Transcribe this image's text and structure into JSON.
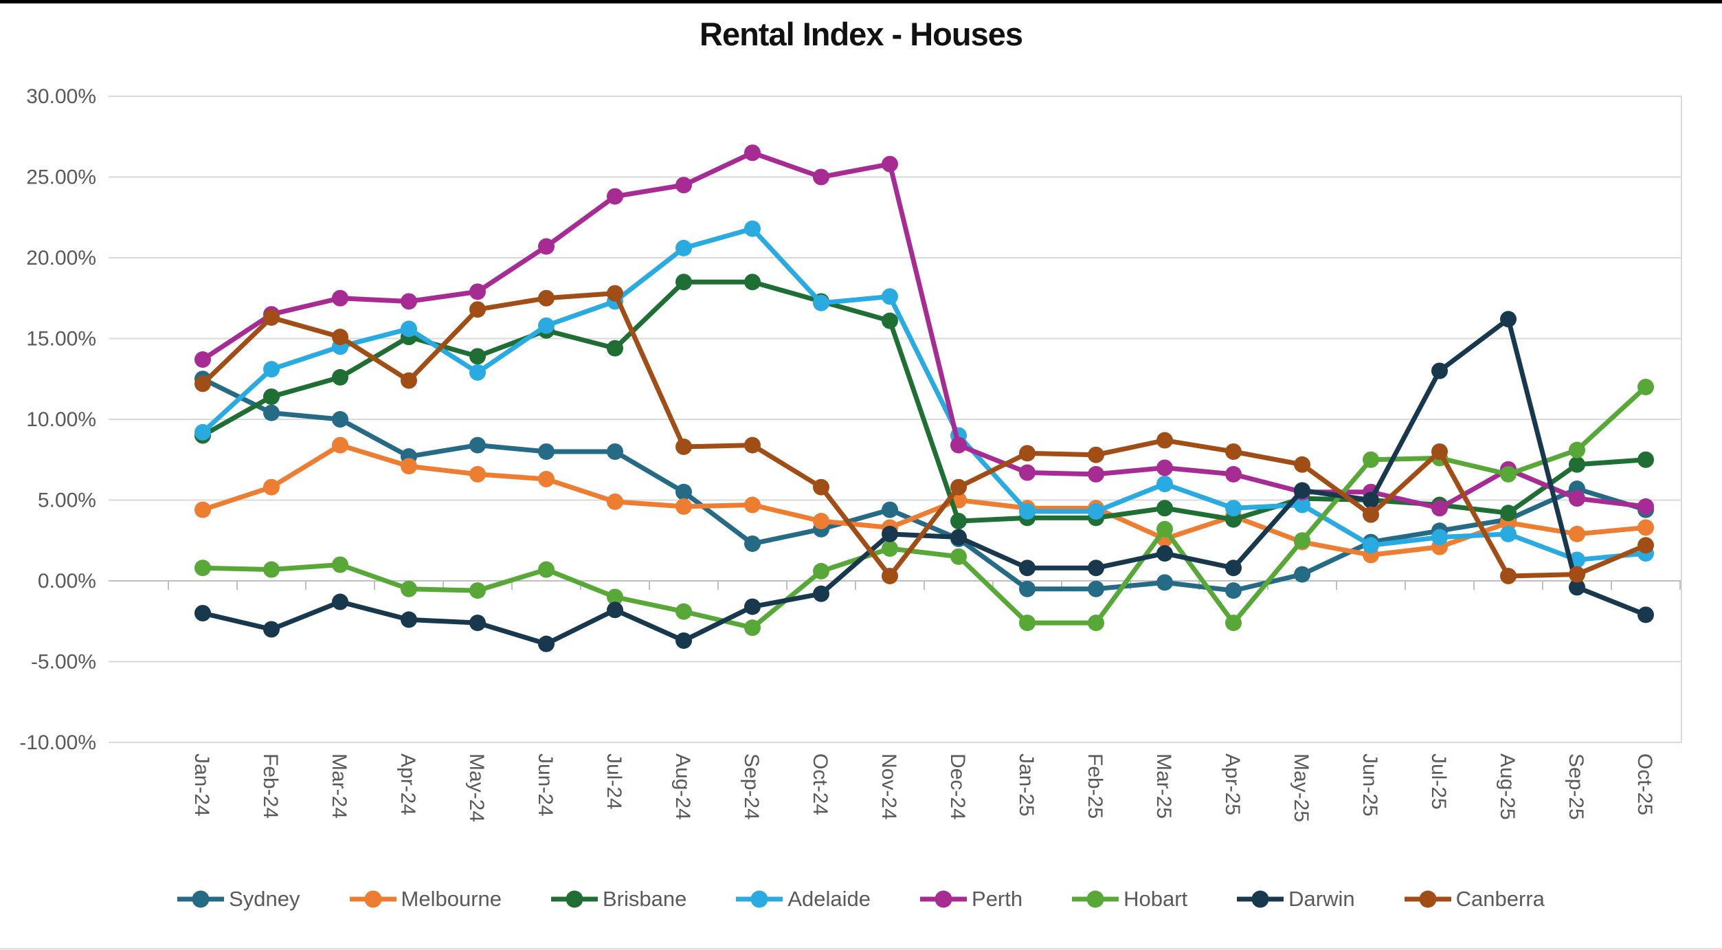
{
  "chart_data": {
    "type": "line",
    "title": "Rental Index - Houses",
    "xlabel": "",
    "ylabel": "",
    "ylim": [
      -10,
      30
    ],
    "ytick_step": 5,
    "ytick_labels": [
      "30.00%",
      "25.00%",
      "20.00%",
      "15.00%",
      "10.00%",
      "5.00%",
      "0.00%",
      "-5.00%",
      "-10.00%"
    ],
    "grid": true,
    "legend_position": "bottom",
    "marker": "circle",
    "axis_label_color": "#595959",
    "gridline_color": "#D9D9D9",
    "axis_line_color": "#BFBFBF",
    "categories": [
      "Jan-24",
      "Feb-24",
      "Mar-24",
      "Apr-24",
      "May-24",
      "Jun-24",
      "Jul-24",
      "Aug-24",
      "Sep-24",
      "Oct-24",
      "Nov-24",
      "Dec-24",
      "Jan-25",
      "Feb-25",
      "Mar-25",
      "Apr-25",
      "May-25",
      "Jun-25",
      "Jul-25",
      "Aug-25",
      "Sep-25",
      "Oct-25"
    ],
    "series": [
      {
        "name": "Sydney",
        "color": "#266B85",
        "values": [
          12.5,
          10.4,
          10.0,
          7.7,
          8.4,
          8.0,
          8.0,
          5.5,
          2.3,
          3.2,
          4.4,
          2.6,
          -0.5,
          -0.5,
          -0.1,
          -0.6,
          0.4,
          2.4,
          3.1,
          3.8,
          5.7,
          4.4
        ]
      },
      {
        "name": "Melbourne",
        "color": "#ED7D31",
        "values": [
          4.4,
          5.8,
          8.4,
          7.1,
          6.6,
          6.3,
          4.9,
          4.6,
          4.7,
          3.7,
          3.3,
          5.0,
          4.5,
          4.5,
          2.6,
          4.0,
          2.4,
          1.6,
          2.1,
          3.6,
          2.9,
          3.3
        ]
      },
      {
        "name": "Brisbane",
        "color": "#1F6E33",
        "values": [
          9.0,
          11.4,
          12.6,
          15.1,
          13.9,
          15.5,
          14.4,
          18.5,
          18.5,
          17.3,
          16.1,
          3.7,
          3.9,
          3.9,
          4.5,
          3.8,
          5.1,
          5.0,
          4.7,
          4.2,
          7.2,
          7.5
        ]
      },
      {
        "name": "Adelaide",
        "color": "#29ABE2",
        "values": [
          9.2,
          13.1,
          14.5,
          15.6,
          12.9,
          15.8,
          17.3,
          20.6,
          21.8,
          17.2,
          17.6,
          9.0,
          4.3,
          4.3,
          6.0,
          4.5,
          4.7,
          2.2,
          2.7,
          2.9,
          1.3,
          1.7
        ]
      },
      {
        "name": "Perth",
        "color": "#A62C94",
        "values": [
          13.7,
          16.5,
          17.5,
          17.3,
          17.9,
          20.7,
          23.8,
          24.5,
          26.5,
          25.0,
          25.8,
          8.4,
          6.7,
          6.6,
          7.0,
          6.6,
          5.5,
          5.5,
          4.5,
          6.9,
          5.1,
          4.6
        ]
      },
      {
        "name": "Hobart",
        "color": "#58A838",
        "values": [
          0.8,
          0.7,
          1.0,
          -0.5,
          -0.6,
          0.7,
          -1.0,
          -1.9,
          -2.9,
          0.6,
          2.0,
          1.5,
          -2.6,
          -2.6,
          3.2,
          -2.6,
          2.5,
          7.5,
          7.6,
          6.6,
          8.1,
          12.0
        ]
      },
      {
        "name": "Darwin",
        "color": "#17384D",
        "values": [
          -2.0,
          -3.0,
          -1.3,
          -2.4,
          -2.6,
          -3.9,
          -1.8,
          -3.7,
          -1.6,
          -0.8,
          2.9,
          2.7,
          0.8,
          0.8,
          1.7,
          0.8,
          5.6,
          5.0,
          13.0,
          16.2,
          -0.4,
          -2.1
        ]
      },
      {
        "name": "Canberra",
        "color": "#A14E16",
        "values": [
          12.2,
          16.3,
          15.1,
          12.4,
          16.8,
          17.5,
          17.8,
          8.3,
          8.4,
          5.8,
          0.3,
          5.8,
          7.9,
          7.8,
          8.7,
          8.0,
          7.2,
          4.1,
          8.0,
          0.3,
          0.4,
          2.2
        ]
      }
    ]
  }
}
